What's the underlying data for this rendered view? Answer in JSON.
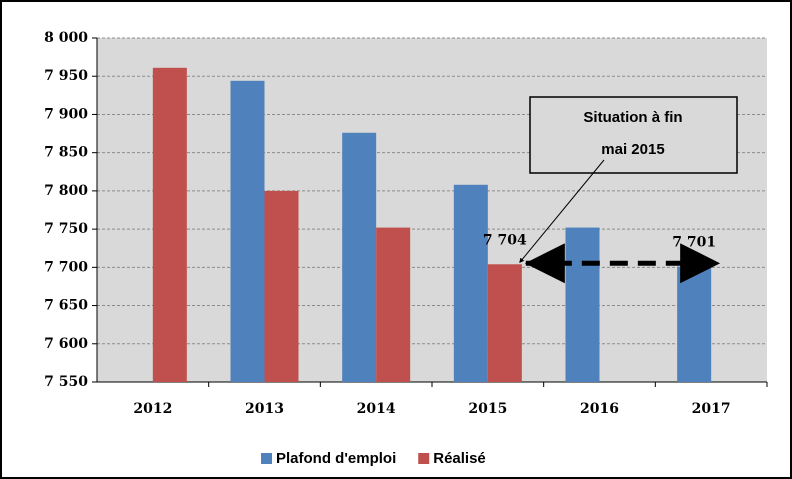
{
  "chart_data": {
    "type": "bar",
    "categories": [
      "2012",
      "2013",
      "2014",
      "2015",
      "2016",
      "2017"
    ],
    "series": [
      {
        "name": "Plafond d'emploi",
        "color": "#4f81bd",
        "values": [
          null,
          7944,
          7876,
          7808,
          7752,
          7701
        ],
        "value_labels": [
          null,
          null,
          null,
          null,
          null,
          "7 701"
        ]
      },
      {
        "name": "Réalisé",
        "color": "#c0504d",
        "values": [
          7961,
          7800,
          7752,
          7704,
          null,
          null
        ],
        "value_labels": [
          null,
          null,
          null,
          "7 704",
          null,
          null
        ]
      }
    ],
    "ylim": [
      7550,
      8000
    ],
    "yticks": [
      {
        "value": 7550,
        "label": "7 550"
      },
      {
        "value": 7600,
        "label": "7 600"
      },
      {
        "value": 7650,
        "label": "7 650"
      },
      {
        "value": 7700,
        "label": "7 700"
      },
      {
        "value": 7750,
        "label": "7 750"
      },
      {
        "value": 7800,
        "label": "7 800"
      },
      {
        "value": 7850,
        "label": "7 850"
      },
      {
        "value": 7900,
        "label": "7 900"
      },
      {
        "value": 7950,
        "label": "7 950"
      },
      {
        "value": 8000,
        "label": "8 000"
      }
    ],
    "grid": true,
    "annotation": [
      "Situation à fin",
      "mai 2015"
    ],
    "legend": "bottom"
  }
}
